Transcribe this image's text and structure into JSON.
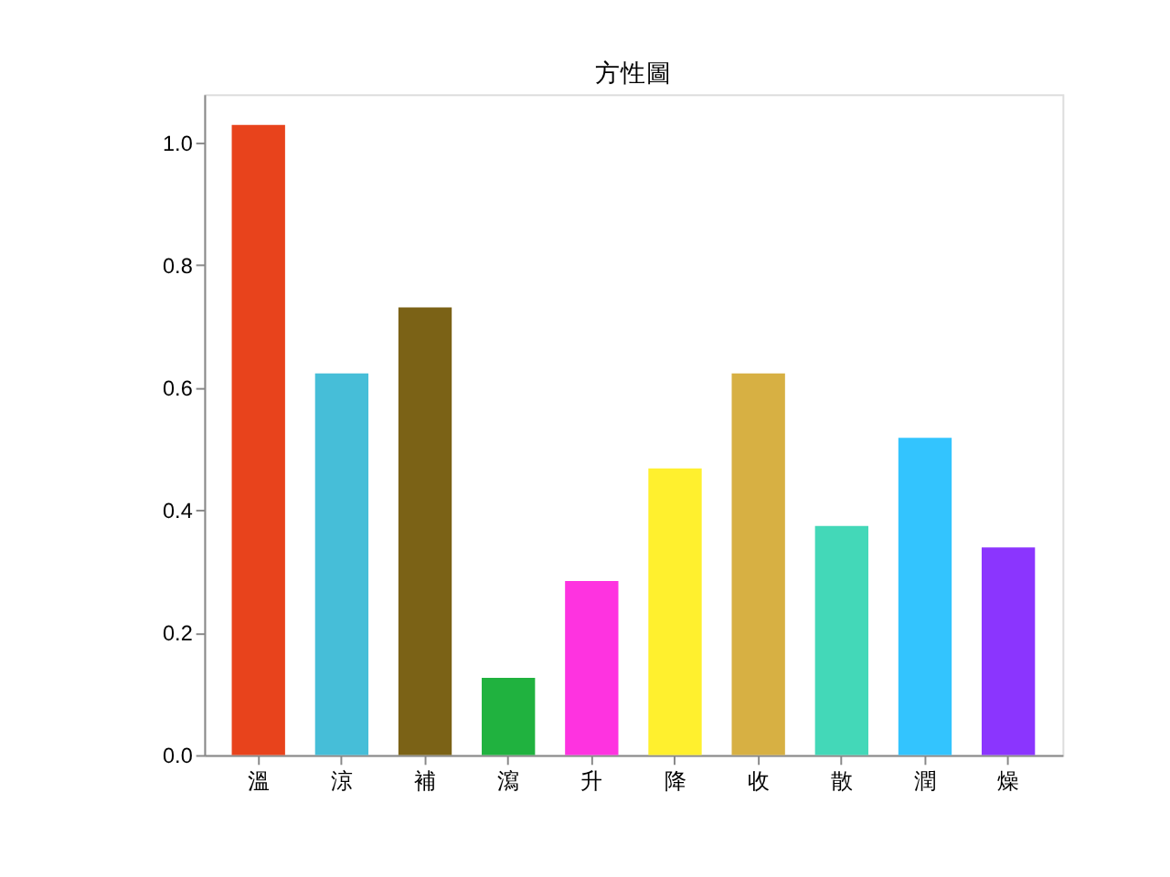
{
  "chart_data": {
    "type": "bar",
    "title": "方性圖",
    "categories": [
      "溫",
      "涼",
      "補",
      "瀉",
      "升",
      "降",
      "收",
      "散",
      "潤",
      "燥"
    ],
    "values": [
      1.029,
      0.623,
      0.731,
      0.126,
      0.284,
      0.468,
      0.623,
      0.374,
      0.518,
      0.339
    ],
    "colors": [
      "#e8431c",
      "#46bed8",
      "#7b6216",
      "#20b23f",
      "#fe33e0",
      "#fff02e",
      "#d7b043",
      "#43d8b8",
      "#33c4fe",
      "#8b35fe"
    ],
    "ylim": [
      0,
      1.079
    ],
    "yticks": [
      {
        "value": 0,
        "label": "0.0"
      },
      0.2,
      0.4,
      0.6,
      0.8,
      {
        "value": 1.0,
        "label": "1.0"
      }
    ],
    "grid": false,
    "legend": false
  }
}
